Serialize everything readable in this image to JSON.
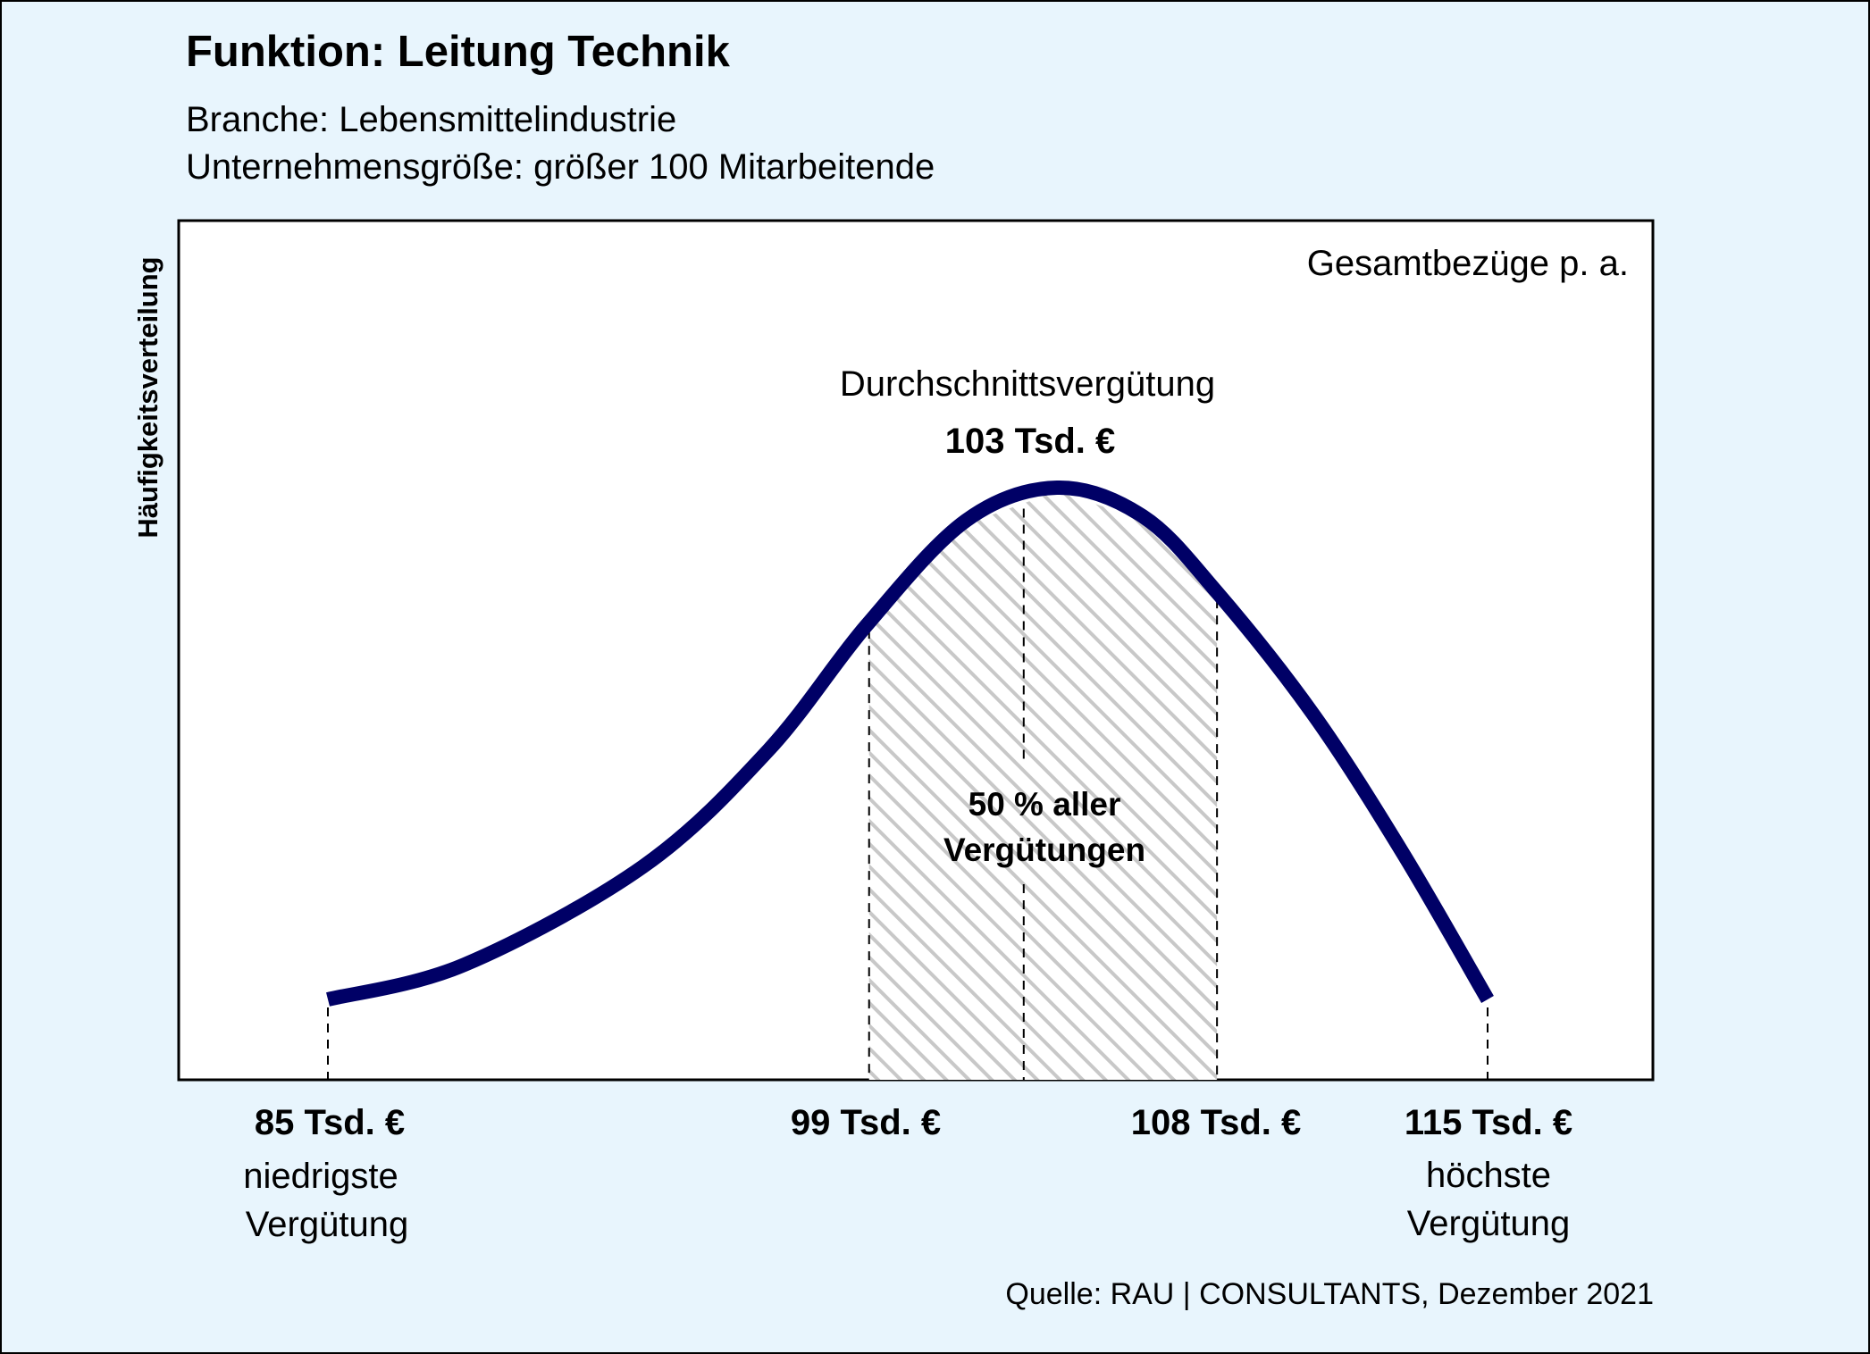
{
  "header": {
    "title": "Funktion: Leitung Technik",
    "subtitle_1": "Branche: Lebensmittelindustrie",
    "subtitle_2": "Unternehmensgröße: größer 100 Mitarbeitende"
  },
  "footer": {
    "source": "Quelle: RAU | CONSULTANTS, Dezember 2021"
  },
  "colors": {
    "background": "#e8f5fd",
    "curve": "#000066",
    "hatch": "#c8c8c8",
    "plot_background": "#ffffff"
  },
  "chart_data": {
    "type": "area",
    "ylabel": "Häufigkeitsverteilung",
    "xlabel": "Gesamtbezüge p. a.",
    "unit": "Tsd. €",
    "x_min": 85,
    "x_max": 115,
    "lower_quartile": 99,
    "upper_quartile": 108,
    "average": 103,
    "average_label": "Durchschnittsvergütung",
    "average_value_label": "103 Tsd. €",
    "band_label_line1": "50 % aller",
    "band_label_line2": "Vergütungen",
    "band_share_percent": 50,
    "ticks": [
      {
        "value": 85,
        "label": "85 Tsd. €",
        "desc_line1": "niedrigste",
        "desc_line2": "Vergütung"
      },
      {
        "value": 99,
        "label": "99 Tsd. €",
        "desc_line1": "",
        "desc_line2": ""
      },
      {
        "value": 108,
        "label": "108 Tsd. €",
        "desc_line1": "",
        "desc_line2": ""
      },
      {
        "value": 115,
        "label": "115 Tsd. €",
        "desc_line1": "höchste",
        "desc_line2": "Vergütung"
      }
    ],
    "grid": false,
    "legend": "none"
  }
}
